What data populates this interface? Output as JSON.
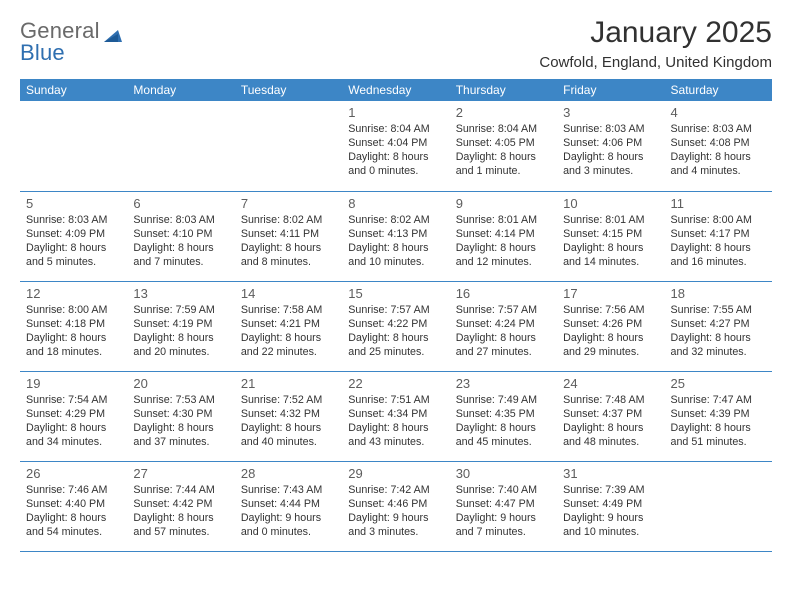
{
  "logo": {
    "textGeneral": "General",
    "textBlue": "Blue"
  },
  "title": "January 2025",
  "location": "Cowfold, England, United Kingdom",
  "colors": {
    "header_bg": "#3d86c6",
    "header_text": "#ffffff",
    "border": "#3d86c6",
    "body_text": "#333333",
    "daynum": "#5d5d5d",
    "logo_general": "#6a6a6a",
    "logo_blue": "#2f6fb0"
  },
  "weekdays": [
    "Sunday",
    "Monday",
    "Tuesday",
    "Wednesday",
    "Thursday",
    "Friday",
    "Saturday"
  ],
  "days": {
    "1": {
      "sunrise": "8:04 AM",
      "sunset": "4:04 PM",
      "daylight": "8 hours and 0 minutes."
    },
    "2": {
      "sunrise": "8:04 AM",
      "sunset": "4:05 PM",
      "daylight": "8 hours and 1 minute."
    },
    "3": {
      "sunrise": "8:03 AM",
      "sunset": "4:06 PM",
      "daylight": "8 hours and 3 minutes."
    },
    "4": {
      "sunrise": "8:03 AM",
      "sunset": "4:08 PM",
      "daylight": "8 hours and 4 minutes."
    },
    "5": {
      "sunrise": "8:03 AM",
      "sunset": "4:09 PM",
      "daylight": "8 hours and 5 minutes."
    },
    "6": {
      "sunrise": "8:03 AM",
      "sunset": "4:10 PM",
      "daylight": "8 hours and 7 minutes."
    },
    "7": {
      "sunrise": "8:02 AM",
      "sunset": "4:11 PM",
      "daylight": "8 hours and 8 minutes."
    },
    "8": {
      "sunrise": "8:02 AM",
      "sunset": "4:13 PM",
      "daylight": "8 hours and 10 minutes."
    },
    "9": {
      "sunrise": "8:01 AM",
      "sunset": "4:14 PM",
      "daylight": "8 hours and 12 minutes."
    },
    "10": {
      "sunrise": "8:01 AM",
      "sunset": "4:15 PM",
      "daylight": "8 hours and 14 minutes."
    },
    "11": {
      "sunrise": "8:00 AM",
      "sunset": "4:17 PM",
      "daylight": "8 hours and 16 minutes."
    },
    "12": {
      "sunrise": "8:00 AM",
      "sunset": "4:18 PM",
      "daylight": "8 hours and 18 minutes."
    },
    "13": {
      "sunrise": "7:59 AM",
      "sunset": "4:19 PM",
      "daylight": "8 hours and 20 minutes."
    },
    "14": {
      "sunrise": "7:58 AM",
      "sunset": "4:21 PM",
      "daylight": "8 hours and 22 minutes."
    },
    "15": {
      "sunrise": "7:57 AM",
      "sunset": "4:22 PM",
      "daylight": "8 hours and 25 minutes."
    },
    "16": {
      "sunrise": "7:57 AM",
      "sunset": "4:24 PM",
      "daylight": "8 hours and 27 minutes."
    },
    "17": {
      "sunrise": "7:56 AM",
      "sunset": "4:26 PM",
      "daylight": "8 hours and 29 minutes."
    },
    "18": {
      "sunrise": "7:55 AM",
      "sunset": "4:27 PM",
      "daylight": "8 hours and 32 minutes."
    },
    "19": {
      "sunrise": "7:54 AM",
      "sunset": "4:29 PM",
      "daylight": "8 hours and 34 minutes."
    },
    "20": {
      "sunrise": "7:53 AM",
      "sunset": "4:30 PM",
      "daylight": "8 hours and 37 minutes."
    },
    "21": {
      "sunrise": "7:52 AM",
      "sunset": "4:32 PM",
      "daylight": "8 hours and 40 minutes."
    },
    "22": {
      "sunrise": "7:51 AM",
      "sunset": "4:34 PM",
      "daylight": "8 hours and 43 minutes."
    },
    "23": {
      "sunrise": "7:49 AM",
      "sunset": "4:35 PM",
      "daylight": "8 hours and 45 minutes."
    },
    "24": {
      "sunrise": "7:48 AM",
      "sunset": "4:37 PM",
      "daylight": "8 hours and 48 minutes."
    },
    "25": {
      "sunrise": "7:47 AM",
      "sunset": "4:39 PM",
      "daylight": "8 hours and 51 minutes."
    },
    "26": {
      "sunrise": "7:46 AM",
      "sunset": "4:40 PM",
      "daylight": "8 hours and 54 minutes."
    },
    "27": {
      "sunrise": "7:44 AM",
      "sunset": "4:42 PM",
      "daylight": "8 hours and 57 minutes."
    },
    "28": {
      "sunrise": "7:43 AM",
      "sunset": "4:44 PM",
      "daylight": "9 hours and 0 minutes."
    },
    "29": {
      "sunrise": "7:42 AM",
      "sunset": "4:46 PM",
      "daylight": "9 hours and 3 minutes."
    },
    "30": {
      "sunrise": "7:40 AM",
      "sunset": "4:47 PM",
      "daylight": "9 hours and 7 minutes."
    },
    "31": {
      "sunrise": "7:39 AM",
      "sunset": "4:49 PM",
      "daylight": "9 hours and 10 minutes."
    }
  },
  "labels": {
    "sunrise": "Sunrise: ",
    "sunset": "Sunset: ",
    "daylight": "Daylight: "
  },
  "grid": {
    "first_weekday_index": 3,
    "days_in_month": 31
  }
}
